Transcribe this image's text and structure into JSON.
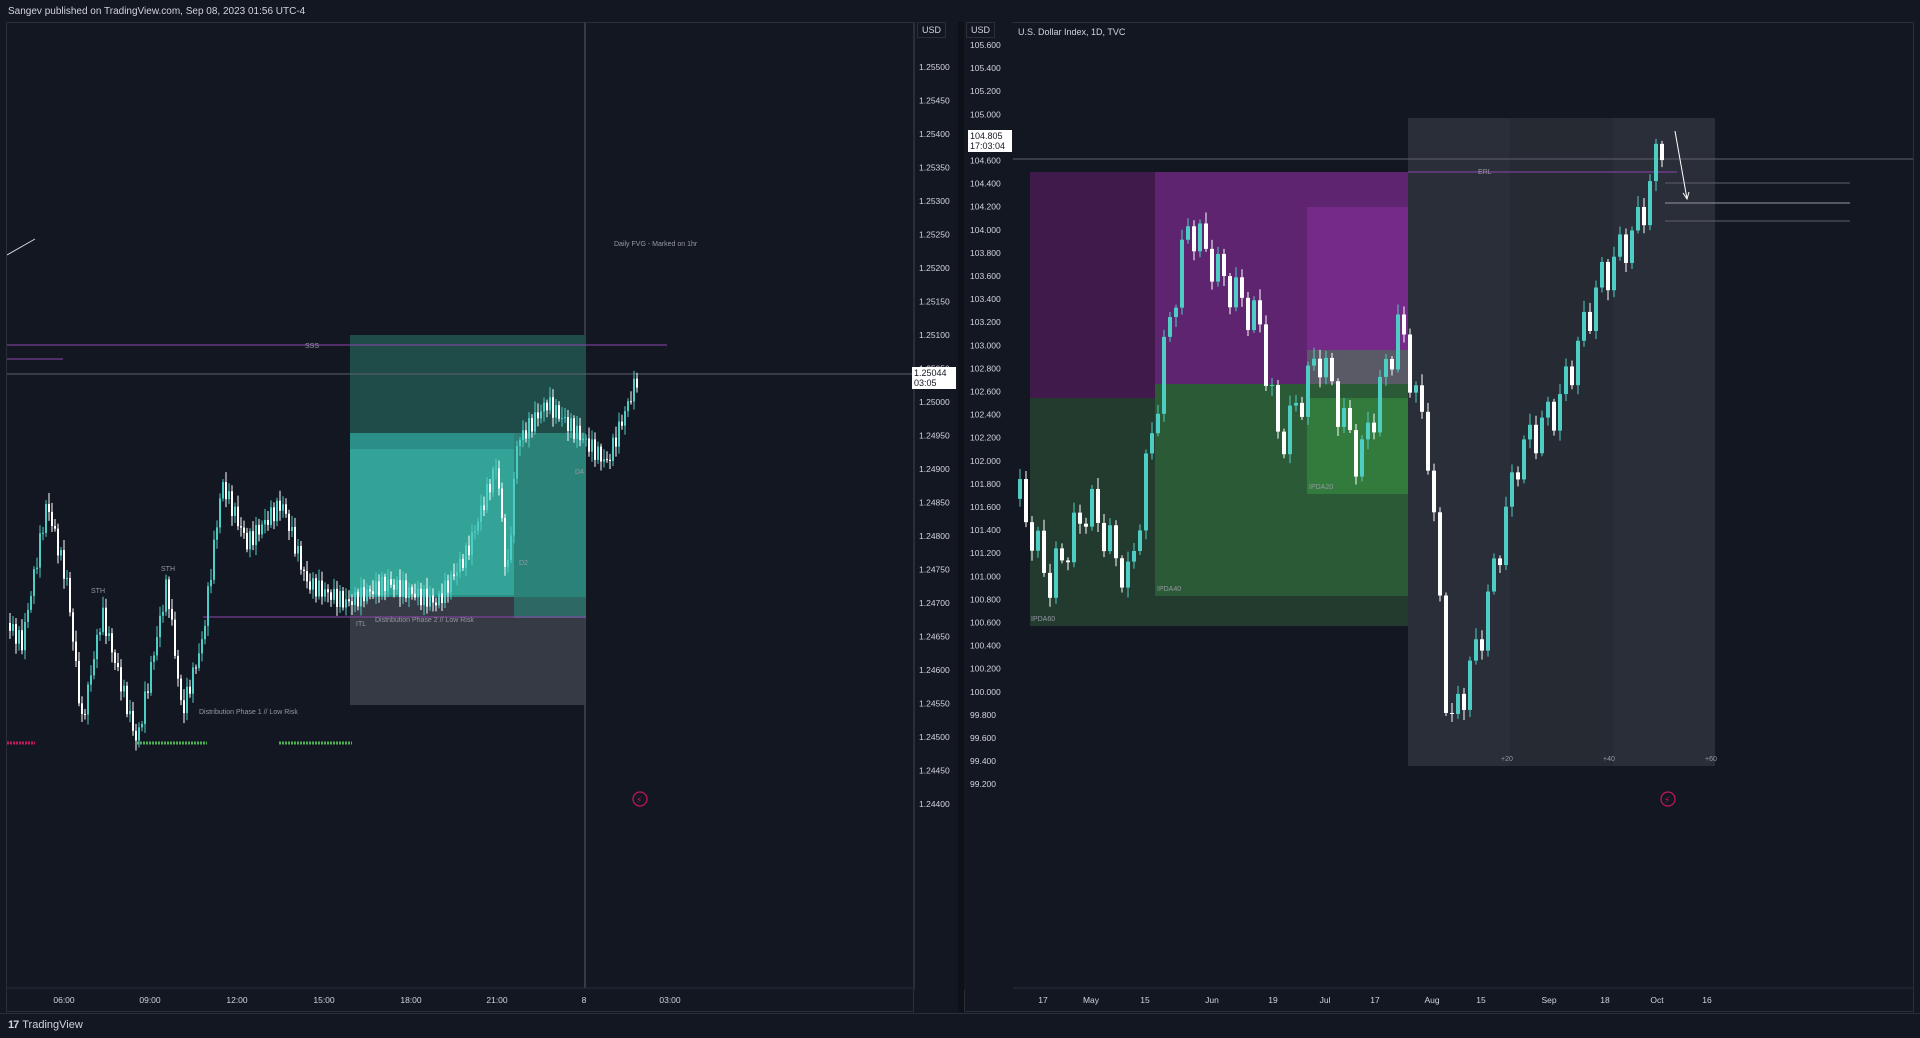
{
  "header": {
    "published": "Sangev published on TradingView.com, Sep 08, 2023 01:56 UTC-4"
  },
  "footer": {
    "brand": "TradingView"
  },
  "left_chart": {
    "currency": "USD",
    "price_ticks": [
      "1.25500",
      "1.25450",
      "1.25400",
      "1.25350",
      "1.25300",
      "1.25250",
      "1.25200",
      "1.25150",
      "1.25100",
      "1.25050",
      "1.25000",
      "1.24950",
      "1.24900",
      "1.24850",
      "1.24800",
      "1.24750",
      "1.24700",
      "1.24650",
      "1.24600",
      "1.24550",
      "1.24500",
      "1.24450",
      "1.24400"
    ],
    "time_ticks": [
      "06:00",
      "09:00",
      "12:00",
      "15:00",
      "18:00",
      "21:00",
      "8",
      "03:00"
    ],
    "last_price": "1.25044",
    "countdown": "03:05",
    "annotations": {
      "fvg": "Daily FVG - Marked on 1hr",
      "sss": "SSS",
      "sth1": "STH",
      "sth2": "STH",
      "itl": "ITL",
      "dist1": "Distribution Phase 1 // Low Risk",
      "dist2": "Distribution Phase 2 // Low Risk",
      "d2": "D2",
      "d4": "D4"
    }
  },
  "right_chart": {
    "currency": "USD",
    "symbol": "U.S. Dollar Index, 1D, TVC",
    "price_ticks": [
      "105.600",
      "105.400",
      "105.200",
      "105.000",
      "104.800",
      "104.600",
      "104.400",
      "104.200",
      "104.000",
      "103.800",
      "103.600",
      "103.400",
      "103.200",
      "103.000",
      "102.800",
      "102.600",
      "102.400",
      "102.200",
      "102.000",
      "101.800",
      "101.600",
      "101.400",
      "101.200",
      "101.000",
      "100.800",
      "100.600",
      "100.400",
      "100.200",
      "100.000",
      "99.800",
      "99.600",
      "99.400",
      "99.200"
    ],
    "time_ticks": [
      "17",
      "May",
      "15",
      "Jun",
      "19",
      "Jul",
      "17",
      "Aug",
      "15",
      "Sep",
      "18",
      "Oct",
      "16"
    ],
    "last_price": "104.805",
    "countdown": "17:03:04",
    "annotations": {
      "erl": "ERL",
      "ipda60": "IPDA60",
      "ipda40": "IPDA40",
      "ipda20": "IPDA20",
      "plus20": "+20",
      "plus40": "+40",
      "plus60": "+60"
    }
  },
  "colors": {
    "background": "#131722",
    "bull": "#4ecdc4",
    "bear": "#ffffff",
    "magenta_zone": "#7b1fa2",
    "green_zone": "#2e7d32",
    "teal_zone": "#26a69a"
  }
}
